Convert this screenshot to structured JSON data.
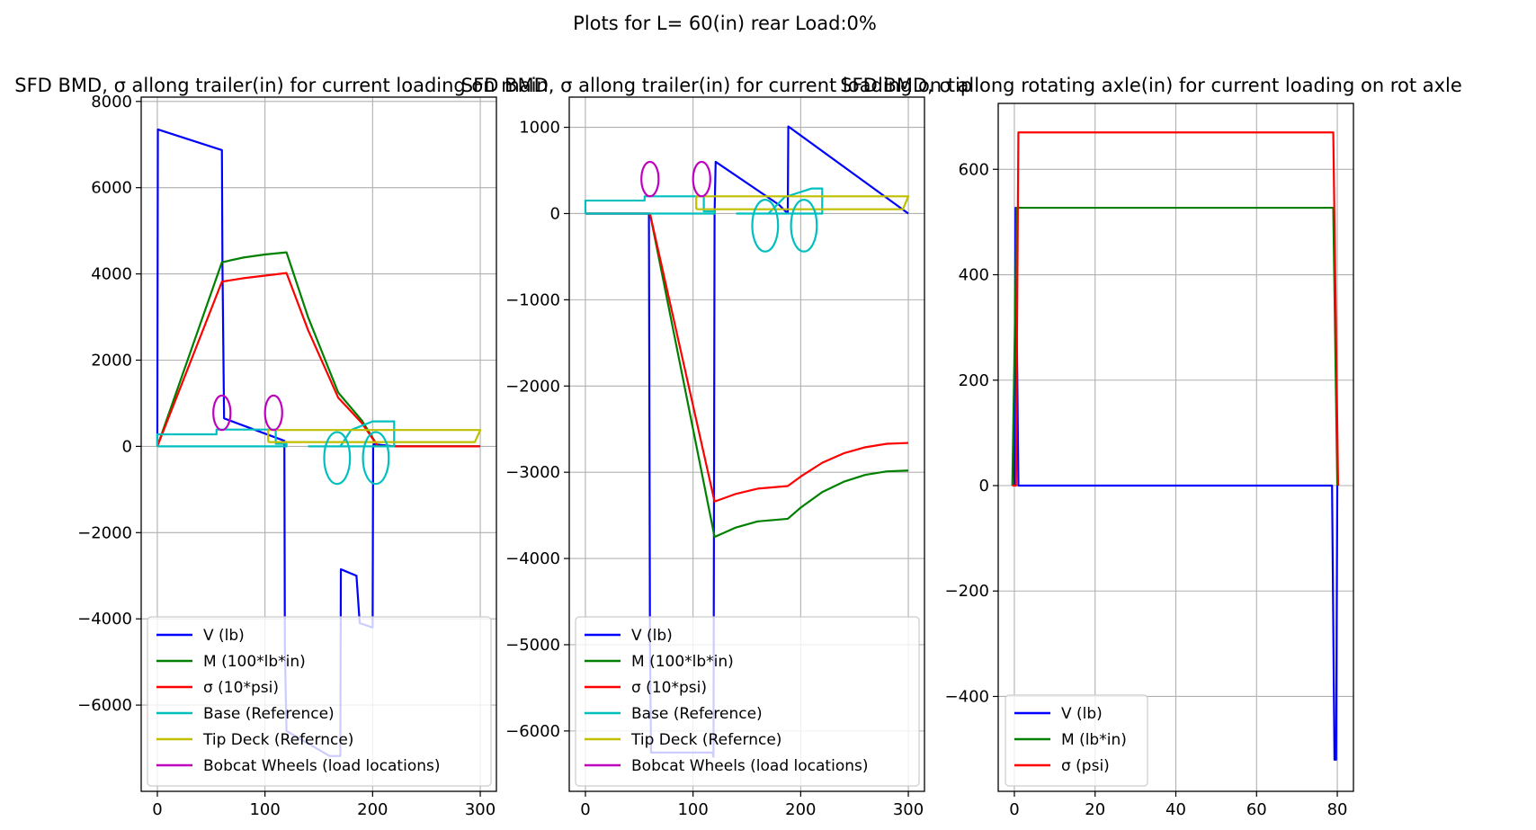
{
  "figure": {
    "suptitle": "Plots for L= 60(in) rear Load:0%"
  },
  "chart_data": [
    {
      "type": "line",
      "title": "SFD BMD, σ allong trailer(in) for current loading on main",
      "xlabel": "",
      "ylabel": "",
      "xlim": [
        -15,
        315
      ],
      "ylim": [
        -8000,
        8100
      ],
      "xticks": [
        0,
        100,
        200,
        300
      ],
      "yticks": [
        -6000,
        -4000,
        -2000,
        0,
        2000,
        4000,
        6000,
        8000
      ],
      "grid": true,
      "legend_position": "lower-right",
      "series": [
        {
          "name": "V (lb)",
          "color": "#0000ff",
          "kind": "line",
          "x": [
            0,
            0.5,
            60,
            60.5,
            62,
            118,
            118.5,
            120,
            160,
            170,
            170.5,
            185,
            188,
            200,
            200.5,
            201,
            220,
            300
          ],
          "y": [
            0,
            7350,
            6870,
            4200,
            650,
            130,
            -4700,
            -6600,
            -7180,
            -7180,
            -2850,
            -3000,
            -4100,
            -4200,
            0,
            50,
            0,
            0
          ]
        },
        {
          "name": "M (100*lb*in)",
          "color": "#008000",
          "kind": "line",
          "x": [
            0,
            60,
            80,
            100,
            120,
            140,
            168,
            190,
            205,
            300
          ],
          "y": [
            0,
            4270,
            4380,
            4450,
            4500,
            3000,
            1250,
            600,
            0,
            0
          ]
        },
        {
          "name": "σ (10*psi)",
          "color": "#ff0000",
          "kind": "line",
          "x": [
            0,
            60,
            80,
            100,
            120,
            140,
            168,
            190,
            205,
            300
          ],
          "y": [
            0,
            3820,
            3900,
            3960,
            4020,
            2700,
            1130,
            540,
            0,
            0
          ]
        },
        {
          "name": "Base (Reference)",
          "color": "#00bfbf",
          "kind": "line",
          "x": [
            0,
            0,
            55,
            55,
            110,
            110,
            120,
            120,
            0,
            null,
            140,
            170,
            180,
            200,
            220,
            220,
            140,
            140
          ],
          "y": [
            0,
            280,
            280,
            390,
            390,
            60,
            60,
            0,
            0,
            null,
            0,
            0,
            380,
            580,
            580,
            0,
            0,
            0
          ]
        },
        {
          "name": "Tip Deck (Refernce)",
          "color": "#bfbf00",
          "kind": "line",
          "x": [
            103,
            103,
            300,
            295,
            103
          ],
          "y": [
            100,
            380,
            380,
            100,
            100
          ]
        },
        {
          "name": "Bobcat Wheels (load locations)",
          "color": "#bf00bf",
          "kind": "ellipse",
          "ellipses": [
            {
              "cx": 60,
              "cy": 780,
              "rx": 8,
              "ry": 400
            },
            {
              "cx": 108,
              "cy": 780,
              "rx": 8,
              "ry": 400
            }
          ]
        },
        {
          "name": "",
          "color": "#00bfbf",
          "kind": "ellipse",
          "ellipses": [
            {
              "cx": 167,
              "cy": -270,
              "rx": 12,
              "ry": 600
            },
            {
              "cx": 203,
              "cy": -270,
              "rx": 12,
              "ry": 600
            }
          ]
        }
      ]
    },
    {
      "type": "line",
      "title": "SFD BMD, σ allong trailer(in) for current loading on tip",
      "xlabel": "",
      "ylabel": "",
      "xlim": [
        -15,
        315
      ],
      "ylim": [
        -6700,
        1350
      ],
      "xticks": [
        0,
        100,
        200,
        300
      ],
      "yticks": [
        -6000,
        -5000,
        -4000,
        -3000,
        -2000,
        -1000,
        0,
        1000
      ],
      "grid": true,
      "legend_position": "lower-right",
      "series": [
        {
          "name": "V (lb)",
          "color": "#0000ff",
          "kind": "line",
          "x": [
            0,
            59,
            60,
            61,
            118,
            119,
            120,
            121,
            180,
            188,
            188.5,
            300
          ],
          "y": [
            0,
            0,
            -5000,
            -6250,
            -6250,
            -6300,
            0,
            600,
            100,
            0,
            1010,
            0
          ]
        },
        {
          "name": "M (100*lb*in)",
          "color": "#008000",
          "kind": "line",
          "x": [
            0,
            60,
            120,
            140,
            160,
            188,
            200,
            220,
            240,
            260,
            280,
            300
          ],
          "y": [
            0,
            0,
            -3750,
            -3640,
            -3570,
            -3540,
            -3410,
            -3230,
            -3110,
            -3030,
            -2990,
            -2980
          ]
        },
        {
          "name": "σ (10*psi)",
          "color": "#ff0000",
          "kind": "line",
          "x": [
            0,
            60,
            120,
            140,
            160,
            188,
            200,
            220,
            240,
            260,
            280,
            300
          ],
          "y": [
            0,
            0,
            -3340,
            -3250,
            -3190,
            -3160,
            -3050,
            -2890,
            -2780,
            -2710,
            -2670,
            -2660
          ]
        },
        {
          "name": "Base (Reference)",
          "color": "#00bfbf",
          "kind": "line",
          "x": [
            0,
            0,
            55,
            55,
            110,
            110,
            120,
            120,
            0,
            null,
            140,
            170,
            185,
            210,
            220,
            220,
            140,
            140
          ],
          "y": [
            0,
            150,
            150,
            200,
            200,
            25,
            25,
            0,
            0,
            null,
            0,
            0,
            190,
            290,
            290,
            0,
            0,
            0
          ]
        },
        {
          "name": "Tip Deck (Refernce)",
          "color": "#bfbf00",
          "kind": "line",
          "x": [
            103,
            103,
            300,
            295,
            103
          ],
          "y": [
            50,
            200,
            200,
            50,
            50
          ]
        },
        {
          "name": "Bobcat Wheels (load locations)",
          "color": "#bf00bf",
          "kind": "ellipse",
          "ellipses": [
            {
              "cx": 60,
              "cy": 400,
              "rx": 8,
              "ry": 200
            },
            {
              "cx": 108,
              "cy": 400,
              "rx": 8,
              "ry": 200
            }
          ]
        },
        {
          "name": "",
          "color": "#00bfbf",
          "kind": "ellipse",
          "ellipses": [
            {
              "cx": 167,
              "cy": -140,
              "rx": 12,
              "ry": 300
            },
            {
              "cx": 203,
              "cy": -140,
              "rx": 12,
              "ry": 300
            }
          ]
        }
      ]
    },
    {
      "type": "line",
      "title": "SFD BMD, σ allong rotating axle(in) for current loading on rot axle",
      "xlabel": "",
      "ylabel": "",
      "xlim": [
        -4,
        84
      ],
      "ylim": [
        -580,
        725
      ],
      "xticks": [
        0,
        20,
        40,
        60,
        80
      ],
      "yticks": [
        -400,
        -200,
        0,
        200,
        400,
        600
      ],
      "grid": true,
      "legend_position": "lower-left",
      "series": [
        {
          "name": "V (lb)",
          "color": "#0000ff",
          "kind": "line",
          "x": [
            0,
            0.3,
            1,
            78.7,
            79.3,
            79.7,
            80
          ],
          "y": [
            0,
            527,
            0,
            0,
            -520,
            -520,
            0
          ]
        },
        {
          "name": "M (lb*in)",
          "color": "#008000",
          "kind": "line",
          "x": [
            -0.5,
            0.6,
            1,
            79,
            80
          ],
          "y": [
            0,
            527,
            527,
            527,
            0
          ]
        },
        {
          "name": "σ (psi)",
          "color": "#ff0000",
          "kind": "line",
          "x": [
            -0.5,
            0.4,
            1,
            79,
            80.2
          ],
          "y": [
            0,
            0,
            670,
            670,
            0
          ]
        }
      ]
    }
  ]
}
